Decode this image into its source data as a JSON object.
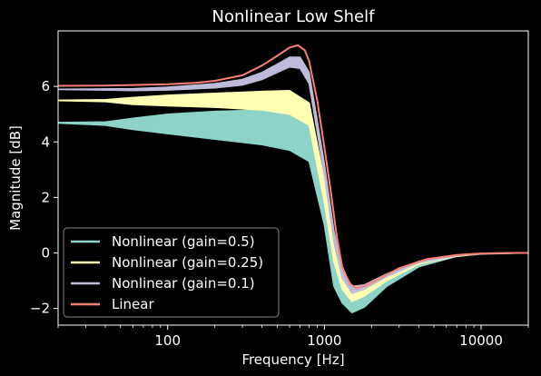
{
  "chart_data": {
    "type": "line",
    "title": "Nonlinear Low Shelf",
    "xlabel": "Frequency [Hz]",
    "ylabel": "Magnitude [dB]",
    "xscale": "log",
    "xlim": [
      20,
      20000
    ],
    "ylim": [
      -2.6,
      8.0
    ],
    "xticks": [
      {
        "value": 100,
        "label": "100"
      },
      {
        "value": 1000,
        "label": "1000"
      },
      {
        "value": 10000,
        "label": "10000"
      }
    ],
    "yticks": [
      {
        "value": -2,
        "label": "−2"
      },
      {
        "value": 0,
        "label": "0"
      },
      {
        "value": 2,
        "label": "2"
      },
      {
        "value": 4,
        "label": "4"
      },
      {
        "value": 6,
        "label": "6"
      }
    ],
    "grid": false,
    "legend_position": "lower-left",
    "background": "#000000",
    "series": [
      {
        "name": "Nonlinear (gain=0.5)",
        "color": "#8dd3c7",
        "upper": [
          [
            20,
            4.7
          ],
          [
            40,
            4.72
          ],
          [
            60,
            4.85
          ],
          [
            100,
            5.0
          ],
          [
            200,
            5.1
          ],
          [
            400,
            5.15
          ],
          [
            600,
            5.05
          ],
          [
            800,
            4.6
          ],
          [
            1000,
            2.0
          ],
          [
            1150,
            0.0
          ],
          [
            1300,
            -1.0
          ],
          [
            1500,
            -1.5
          ],
          [
            1800,
            -1.4
          ],
          [
            2500,
            -0.9
          ],
          [
            4000,
            -0.4
          ],
          [
            7000,
            -0.1
          ],
          [
            10000,
            -0.04
          ],
          [
            20000,
            0.0
          ]
        ],
        "lower": [
          [
            20,
            4.68
          ],
          [
            40,
            4.6
          ],
          [
            60,
            4.45
          ],
          [
            100,
            4.3
          ],
          [
            200,
            4.1
          ],
          [
            400,
            3.9
          ],
          [
            600,
            3.7
          ],
          [
            800,
            3.3
          ],
          [
            1000,
            1.0
          ],
          [
            1150,
            -1.2
          ],
          [
            1300,
            -1.8
          ],
          [
            1500,
            -2.15
          ],
          [
            1800,
            -1.95
          ],
          [
            2500,
            -1.2
          ],
          [
            4000,
            -0.5
          ],
          [
            7000,
            -0.12
          ],
          [
            10000,
            -0.04
          ],
          [
            20000,
            0.0
          ]
        ]
      },
      {
        "name": "Nonlinear (gain=0.25)",
        "color": "#ffffb3",
        "upper": [
          [
            20,
            5.5
          ],
          [
            40,
            5.52
          ],
          [
            60,
            5.6
          ],
          [
            100,
            5.68
          ],
          [
            200,
            5.75
          ],
          [
            400,
            5.82
          ],
          [
            600,
            5.85
          ],
          [
            800,
            5.4
          ],
          [
            1000,
            2.6
          ],
          [
            1150,
            0.4
          ],
          [
            1300,
            -0.7
          ],
          [
            1500,
            -1.25
          ],
          [
            1800,
            -1.2
          ],
          [
            2500,
            -0.8
          ],
          [
            4000,
            -0.35
          ],
          [
            7000,
            -0.1
          ],
          [
            10000,
            -0.03
          ],
          [
            20000,
            0.0
          ]
        ],
        "lower": [
          [
            20,
            5.49
          ],
          [
            40,
            5.45
          ],
          [
            60,
            5.35
          ],
          [
            100,
            5.3
          ],
          [
            200,
            5.25
          ],
          [
            400,
            5.15
          ],
          [
            600,
            5.0
          ],
          [
            800,
            4.6
          ],
          [
            1000,
            1.8
          ],
          [
            1150,
            -0.3
          ],
          [
            1300,
            -1.3
          ],
          [
            1500,
            -1.75
          ],
          [
            1800,
            -1.55
          ],
          [
            2500,
            -1.0
          ],
          [
            4000,
            -0.4
          ],
          [
            7000,
            -0.12
          ],
          [
            10000,
            -0.03
          ],
          [
            20000,
            0.0
          ]
        ]
      },
      {
        "name": "Nonlinear (gain=0.1)",
        "color": "#bebada",
        "upper": [
          [
            20,
            5.9
          ],
          [
            60,
            5.92
          ],
          [
            100,
            5.97
          ],
          [
            200,
            6.1
          ],
          [
            300,
            6.25
          ],
          [
            400,
            6.5
          ],
          [
            500,
            6.8
          ],
          [
            600,
            7.05
          ],
          [
            700,
            7.05
          ],
          [
            800,
            6.5
          ],
          [
            1000,
            3.2
          ],
          [
            1150,
            0.8
          ],
          [
            1300,
            -0.6
          ],
          [
            1500,
            -1.2
          ],
          [
            1800,
            -1.15
          ],
          [
            2500,
            -0.75
          ],
          [
            4000,
            -0.3
          ],
          [
            7000,
            -0.1
          ],
          [
            10000,
            -0.03
          ],
          [
            20000,
            0.0
          ]
        ],
        "lower": [
          [
            20,
            5.89
          ],
          [
            60,
            5.85
          ],
          [
            100,
            5.87
          ],
          [
            200,
            5.95
          ],
          [
            300,
            6.05
          ],
          [
            400,
            6.25
          ],
          [
            500,
            6.5
          ],
          [
            600,
            6.7
          ],
          [
            700,
            6.65
          ],
          [
            800,
            6.1
          ],
          [
            1000,
            2.8
          ],
          [
            1150,
            0.4
          ],
          [
            1300,
            -0.9
          ],
          [
            1500,
            -1.45
          ],
          [
            1800,
            -1.3
          ],
          [
            2500,
            -0.85
          ],
          [
            4000,
            -0.35
          ],
          [
            7000,
            -0.1
          ],
          [
            10000,
            -0.03
          ],
          [
            20000,
            0.0
          ]
        ]
      },
      {
        "name": "Linear",
        "color": "#fb8072",
        "values": [
          [
            20,
            6.02
          ],
          [
            40,
            6.03
          ],
          [
            60,
            6.05
          ],
          [
            100,
            6.08
          ],
          [
            150,
            6.13
          ],
          [
            200,
            6.2
          ],
          [
            300,
            6.4
          ],
          [
            400,
            6.75
          ],
          [
            500,
            7.1
          ],
          [
            600,
            7.4
          ],
          [
            680,
            7.48
          ],
          [
            750,
            7.3
          ],
          [
            800,
            6.9
          ],
          [
            900,
            5.5
          ],
          [
            1000,
            3.8
          ],
          [
            1100,
            2.2
          ],
          [
            1200,
            0.6
          ],
          [
            1300,
            -0.5
          ],
          [
            1450,
            -1.1
          ],
          [
            1600,
            -1.27
          ],
          [
            1800,
            -1.2
          ],
          [
            2200,
            -0.95
          ],
          [
            3000,
            -0.55
          ],
          [
            4500,
            -0.22
          ],
          [
            7000,
            -0.07
          ],
          [
            10000,
            -0.02
          ],
          [
            15000,
            0.0
          ],
          [
            20000,
            0.0
          ]
        ]
      }
    ]
  }
}
